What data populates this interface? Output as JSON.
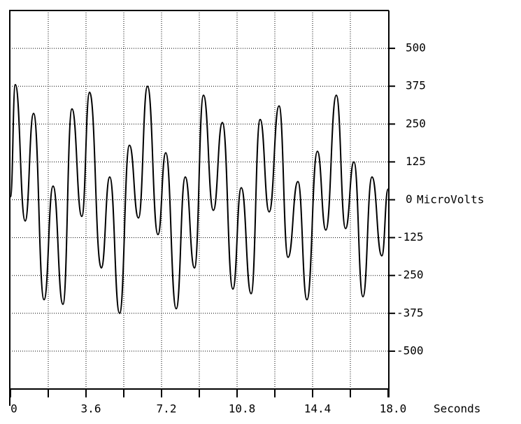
{
  "chart_data": {
    "type": "line",
    "x_label": "Seconds",
    "y_label": "MicroVolts",
    "x": [
      0,
      0.23,
      0.7,
      1.1,
      1.6,
      2.03,
      2.5,
      2.93,
      3.4,
      3.77,
      4.33,
      4.73,
      5.2,
      5.67,
      6.1,
      6.53,
      7.03,
      7.4,
      7.9,
      8.33,
      8.77,
      9.2,
      9.67,
      10.1,
      10.6,
      11.0,
      11.47,
      11.9,
      12.33,
      12.8,
      13.23,
      13.7,
      14.13,
      14.63,
      15.03,
      15.53,
      15.97,
      16.37,
      16.8,
      17.23,
      17.7,
      18.0
    ],
    "series": [
      {
        "color": "#000000",
        "values": [
          10,
          380,
          -70,
          285,
          -330,
          45,
          -345,
          300,
          -55,
          355,
          -225,
          75,
          -375,
          180,
          -60,
          375,
          -115,
          155,
          -360,
          75,
          -225,
          345,
          -35,
          255,
          -295,
          40,
          -310,
          265,
          -40,
          310,
          -190,
          60,
          -330,
          160,
          -100,
          345,
          -95,
          125,
          -320,
          75,
          -185,
          35
        ]
      }
    ],
    "xlim": [
      0,
      18
    ],
    "xticks": [
      0,
      3.6,
      7.2,
      10.8,
      14.4,
      {
        "value": 18,
        "label": "18.0"
      }
    ],
    "ylim": [
      -625,
      625
    ],
    "yticks": [
      -500,
      -375,
      -250,
      -125,
      0,
      125,
      250,
      375,
      500
    ],
    "grid": true
  }
}
